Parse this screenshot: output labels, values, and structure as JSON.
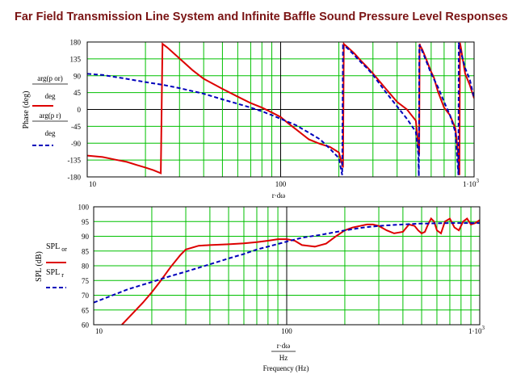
{
  "page_title": "Far Field Transmission Line System and Infinite Baffle Sound Pressure Level Responses",
  "colors": {
    "title": "#7a1414",
    "grid_major": "#000000",
    "grid_minor": "#00c000",
    "series_solid": "#dd0000",
    "series_dashed": "#0000bb",
    "frame": "#000000"
  },
  "chart_data": [
    {
      "type": "line",
      "x_scale": "log",
      "xlim": [
        10,
        1000
      ],
      "ylim": [
        -180,
        180
      ],
      "yticks": [
        -180,
        -135,
        -90,
        -45,
        0,
        45,
        90,
        135,
        180
      ],
      "ytick_labels": [
        "-180",
        "-135",
        "-90",
        "-45",
        "0",
        "45",
        "90",
        "135",
        "180"
      ],
      "xtick_labels": [
        "10",
        "100",
        "1·10^3"
      ],
      "xlabel_fragment": "r·dω",
      "ylabel": "Phase (deg)",
      "legend_labels": [
        "arg(p_or)/deg",
        "arg(p_r)/deg"
      ],
      "legend_numerators": [
        "arg(p or)",
        "arg(p r)"
      ],
      "legend_denominator": "deg",
      "grid": true,
      "series": [
        {
          "style": "solid",
          "x": [
            10,
            12,
            14,
            16,
            18,
            20,
            22,
            24,
            24.5,
            26,
            30,
            35,
            40,
            50,
            60,
            70,
            80,
            90,
            100,
            110,
            120,
            140,
            160,
            180,
            200,
            210,
            212,
            215,
            220,
            240,
            260,
            280,
            300,
            350,
            400,
            450,
            500,
            520,
            523,
            526,
            540,
            560,
            600,
            620,
            650,
            700,
            750,
            800,
            820,
            840,
            845,
            855,
            870,
            900,
            950,
            1000
          ],
          "y": [
            -123,
            -127,
            -134,
            -140,
            -148,
            -155,
            -162,
            -170,
            175,
            165,
            136,
            105,
            82,
            55,
            34,
            17,
            5,
            -8,
            -20,
            -38,
            -53,
            -80,
            -92,
            -100,
            -115,
            -155,
            175,
            172,
            168,
            150,
            130,
            113,
            96,
            55,
            20,
            0,
            -30,
            -120,
            175,
            170,
            160,
            140,
            100,
            85,
            48,
            5,
            -15,
            -50,
            -100,
            -175,
            178,
            165,
            140,
            95,
            65,
            30
          ]
        },
        {
          "style": "dashed",
          "x": [
            10,
            12,
            15,
            20,
            25,
            30,
            35,
            40,
            50,
            60,
            70,
            80,
            90,
            100,
            120,
            140,
            160,
            180,
            200,
            208,
            210,
            213,
            220,
            240,
            260,
            280,
            300,
            350,
            400,
            450,
            500,
            515,
            518,
            521,
            540,
            560,
            600,
            650,
            700,
            750,
            800,
            830,
            833,
            836,
            860,
            900,
            950,
            1000
          ],
          "y": [
            95,
            92,
            84,
            73,
            65,
            57,
            49,
            42,
            27,
            15,
            5,
            -5,
            -15,
            -25,
            -42,
            -62,
            -80,
            -105,
            -130,
            -175,
            170,
            168,
            165,
            145,
            126,
            110,
            92,
            46,
            8,
            -25,
            -60,
            -120,
            -178,
            172,
            155,
            135,
            95,
            60,
            20,
            -15,
            -60,
            -175,
            178,
            172,
            148,
            110,
            80,
            30
          ]
        }
      ]
    },
    {
      "type": "line",
      "x_scale": "log",
      "xlim": [
        10,
        1000
      ],
      "ylim": [
        60,
        100
      ],
      "yticks": [
        60,
        65,
        70,
        75,
        80,
        85,
        90,
        95,
        100
      ],
      "ytick_labels": [
        "60",
        "65",
        "70",
        "75",
        "80",
        "85",
        "90",
        "95",
        "100"
      ],
      "xtick_labels": [
        "10",
        "100",
        "1·10^3"
      ],
      "xlabel_top": "r·dω",
      "xlabel_bottom": "Hz",
      "xlabel_caption": "Frequency (Hz)",
      "ylabel": "SPL (dB)",
      "legend_labels": [
        "SPL_or",
        "SPL_r"
      ],
      "legend_main": [
        "SPL",
        "SPL"
      ],
      "legend_sub": [
        "or",
        "r"
      ],
      "grid": true,
      "series": [
        {
          "style": "solid",
          "x": [
            14,
            16,
            18,
            20,
            22,
            25,
            28,
            30,
            35,
            40,
            50,
            60,
            70,
            80,
            90,
            100,
            110,
            120,
            140,
            160,
            180,
            200,
            220,
            240,
            260,
            280,
            300,
            330,
            360,
            400,
            430,
            460,
            480,
            500,
            520,
            540,
            560,
            580,
            600,
            630,
            660,
            700,
            740,
            780,
            820,
            860,
            900,
            950,
            1000
          ],
          "y": [
            60,
            64,
            67.5,
            71,
            74.5,
            79.5,
            83.5,
            85.5,
            86.8,
            87,
            87.3,
            87.6,
            88,
            88.5,
            89,
            89,
            88.5,
            87,
            86.5,
            87.5,
            90,
            92,
            93,
            93.5,
            94,
            94,
            93.5,
            92,
            91,
            91.5,
            94,
            93.5,
            92,
            91,
            91.5,
            94,
            96,
            95,
            92,
            91,
            95,
            96,
            93,
            92,
            95,
            96,
            94,
            94.5,
            95.5
          ]
        },
        {
          "style": "dashed",
          "x": [
            10,
            12,
            15,
            20,
            25,
            30,
            40,
            50,
            60,
            70,
            80,
            100,
            120,
            150,
            200,
            250,
            300,
            350,
            400,
            450,
            500,
            600,
            700,
            800,
            900,
            1000
          ],
          "y": [
            67.5,
            69.5,
            72,
            74.5,
            76.5,
            78,
            80.5,
            82.5,
            84,
            85.5,
            86.5,
            88.2,
            89.5,
            90.5,
            92,
            93,
            93.5,
            93.8,
            94,
            94.2,
            94.3,
            94.4,
            94.5,
            94.5,
            94.5,
            94.5
          ]
        }
      ]
    }
  ]
}
